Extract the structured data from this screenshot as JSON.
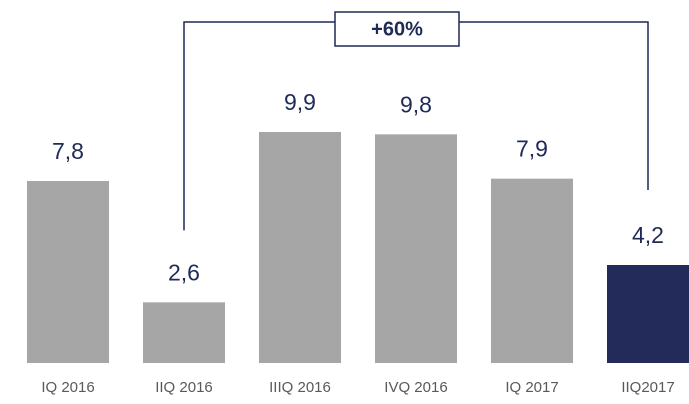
{
  "chart_data": {
    "type": "bar",
    "categories": [
      "IQ 2016",
      "IIQ 2016",
      "IIIQ 2016",
      "IVQ 2016",
      "IQ 2017",
      "IIQ2017"
    ],
    "values": [
      7.8,
      2.6,
      9.9,
      9.8,
      7.9,
      4.2
    ],
    "value_labels": [
      "7,8",
      "2,6",
      "9,9",
      "9,8",
      "7,9",
      "4,2"
    ],
    "colors": [
      "#a6a6a6",
      "#a6a6a6",
      "#a6a6a6",
      "#a6a6a6",
      "#a6a6a6",
      "#232b5a"
    ],
    "annotation": "+60%"
  }
}
